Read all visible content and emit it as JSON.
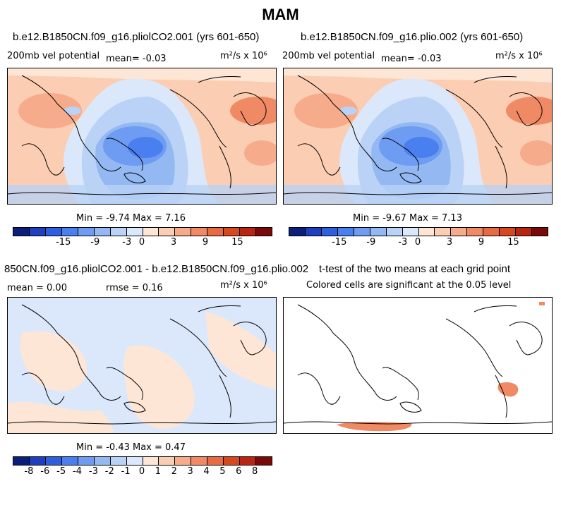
{
  "title": "MAM",
  "panels": [
    {
      "title": "b.e12.B1850CN.f09_g16.pliolCO2.001 (yrs 601-650)",
      "left_label": "200mb vel potential",
      "mean_label": "mean=   -0.03",
      "units": "m²/s x 10⁶",
      "minmax": "Min =  -9.74 Max =   7.16"
    },
    {
      "title": "b.e12.B1850CN.f09_g16.plio.002 (yrs 601-650)",
      "left_label": "200mb vel potential",
      "mean_label": "mean=   -0.03",
      "units": "m²/s x 10⁶",
      "minmax": "Min =  -9.67 Max =   7.13"
    },
    {
      "title": "850CN.f09_g16.pliolCO2.001 - b.e12.B1850CN.f09_g16.plio.002",
      "left_label": "mean =   0.00",
      "mean_label": "rmse =   0.16",
      "units": "m²/s x 10⁶",
      "minmax": "Min =  -0.43 Max =   0.47"
    },
    {
      "title": "t-test of the two means at each grid point",
      "subtitle": "Colored cells are significant at the 0.05 level"
    }
  ],
  "colorbar_top": {
    "colors": [
      "#0a1e7a",
      "#1e3fbf",
      "#2e5fe0",
      "#4a7ff0",
      "#6e9cf2",
      "#93b8f2",
      "#b9d2f5",
      "#dbe8fb",
      "#fde6d6",
      "#fbcdb2",
      "#f6ab8a",
      "#f08a64",
      "#e86a40",
      "#d8481e",
      "#b82512",
      "#7a0a0a"
    ],
    "ticks": [
      "-15",
      "-9",
      "-3",
      "0",
      "3",
      "9",
      "15"
    ]
  },
  "colorbar_bottom": {
    "colors": [
      "#0a1e7a",
      "#1e3fbf",
      "#2e5fe0",
      "#4a7ff0",
      "#6e9cf2",
      "#93b8f2",
      "#b9d2f5",
      "#dbe8fb",
      "#fde6d6",
      "#fbcdb2",
      "#f6ab8a",
      "#f08a64",
      "#e86a40",
      "#d8481e",
      "#b82512",
      "#7a0a0a"
    ],
    "ticks": [
      "-8",
      "-6",
      "-5",
      "-4",
      "-3",
      "-2",
      "-1",
      "0",
      "1",
      "2",
      "3",
      "4",
      "5",
      "6",
      "8"
    ]
  }
}
